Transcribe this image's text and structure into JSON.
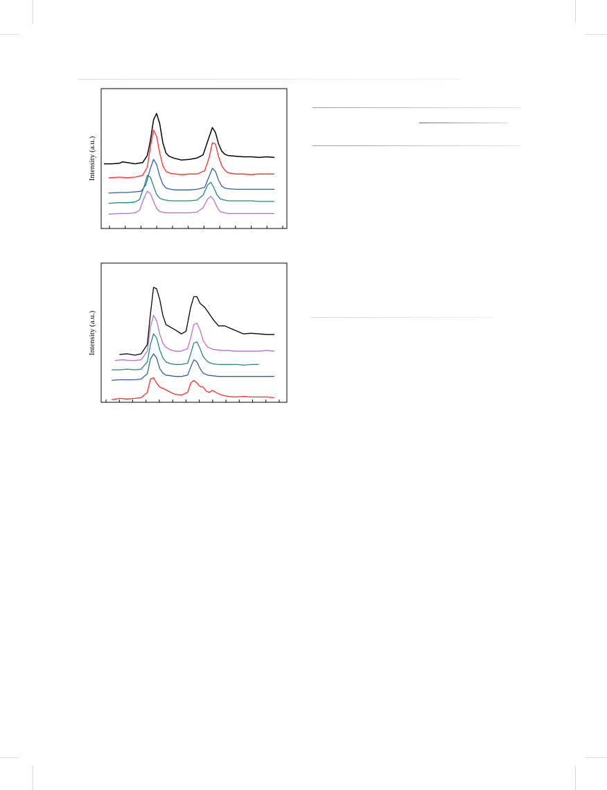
{
  "page": {
    "accent_line_color": "#f3d6d6",
    "table_rule_color": "#9a9a9a",
    "crop_mark_color": "#d9d9d9"
  },
  "chart_data": [
    {
      "type": "line",
      "ylabel": "Intensity (a.u.)",
      "xlim": [
        0,
        11
      ],
      "ylim": [
        0,
        10
      ],
      "x_tick_count": 12,
      "x_tick_labels": [],
      "series": [
        {
          "color": "#000000",
          "x": [
            0.0,
            0.5,
            1.0,
            1.2,
            1.5,
            2.0,
            2.5,
            2.8,
            3.0,
            3.2,
            3.4,
            3.6,
            3.8,
            4.0,
            4.2,
            4.5,
            5.0,
            5.5,
            6.0,
            6.4,
            6.8,
            7.0,
            7.2,
            7.4,
            7.6,
            7.8,
            8.0,
            8.5,
            9.0,
            9.5,
            10.0,
            10.5,
            11.0
          ],
          "y": [
            4.75,
            4.75,
            4.8,
            4.9,
            4.85,
            4.75,
            4.85,
            5.4,
            6.6,
            8.2,
            8.7,
            7.9,
            6.4,
            5.6,
            5.35,
            5.2,
            5.05,
            5.1,
            5.2,
            5.45,
            6.9,
            7.6,
            7.2,
            6.3,
            5.75,
            5.5,
            5.4,
            5.35,
            5.3,
            5.3,
            5.25,
            5.3,
            5.25
          ]
        },
        {
          "color": "#ff2a2a",
          "x": [
            0.3,
            1.0,
            1.5,
            2.0,
            2.5,
            2.8,
            3.0,
            3.2,
            3.4,
            3.6,
            3.8,
            4.0,
            4.3,
            4.6,
            5.0,
            5.5,
            6.0,
            6.5,
            6.8,
            7.0,
            7.2,
            7.4,
            7.6,
            7.8,
            8.0,
            8.5,
            9.0,
            9.5,
            10.0,
            10.5,
            11.0
          ],
          "y": [
            3.65,
            3.7,
            3.65,
            3.7,
            3.85,
            4.5,
            6.1,
            7.4,
            6.9,
            5.6,
            4.6,
            4.15,
            4.0,
            3.95,
            3.9,
            3.95,
            3.95,
            4.2,
            5.3,
            6.4,
            6.3,
            5.3,
            4.6,
            4.25,
            4.05,
            3.95,
            3.95,
            3.9,
            3.95,
            3.95,
            3.95
          ]
        },
        {
          "color": "#2f5ea8",
          "x": [
            0.3,
            1.0,
            1.5,
            2.0,
            2.4,
            2.7,
            3.0,
            3.2,
            3.4,
            3.6,
            3.8,
            4.0,
            4.3,
            4.6,
            5.0,
            5.5,
            6.0,
            6.5,
            6.8,
            7.0,
            7.2,
            7.4,
            7.6,
            7.8,
            8.0,
            8.5,
            9.0,
            9.5,
            10.0,
            10.5,
            11.0
          ],
          "y": [
            2.45,
            2.5,
            2.5,
            2.55,
            2.6,
            3.1,
            4.4,
            5.1,
            4.7,
            3.8,
            3.15,
            2.85,
            2.75,
            2.7,
            2.7,
            2.7,
            2.75,
            2.9,
            3.8,
            4.4,
            4.15,
            3.45,
            3.0,
            2.85,
            2.8,
            2.75,
            2.75,
            2.75,
            2.75,
            2.75,
            2.75
          ]
        },
        {
          "color": "#1f8a7a",
          "x": [
            0.3,
            1.0,
            1.5,
            2.0,
            2.3,
            2.6,
            2.8,
            3.0,
            3.2,
            3.4,
            3.6,
            3.8,
            4.0,
            4.3,
            4.6,
            5.0,
            5.5,
            6.0,
            6.4,
            6.7,
            6.9,
            7.1,
            7.3,
            7.5,
            7.8,
            8.0,
            8.5,
            9.0,
            9.5,
            10.0,
            10.5,
            11.0
          ],
          "y": [
            1.65,
            1.7,
            1.7,
            1.75,
            1.95,
            3.0,
            3.85,
            3.7,
            3.0,
            2.35,
            2.05,
            1.95,
            1.9,
            1.85,
            1.85,
            1.85,
            1.85,
            1.9,
            2.3,
            3.1,
            3.3,
            2.85,
            2.3,
            2.0,
            1.9,
            1.85,
            1.85,
            1.85,
            1.85,
            1.8,
            1.8,
            1.8
          ]
        },
        {
          "color": "#b56fcc",
          "x": [
            0.3,
            1.0,
            1.5,
            2.0,
            2.3,
            2.6,
            2.8,
            3.0,
            3.2,
            3.4,
            3.6,
            3.8,
            4.0,
            4.3,
            4.6,
            5.0,
            5.5,
            6.0,
            6.4,
            6.7,
            6.9,
            7.1,
            7.3,
            7.5,
            7.8,
            8.0,
            8.5,
            9.0,
            9.5,
            10.0,
            10.5,
            11.0
          ],
          "y": [
            0.8,
            0.85,
            0.85,
            0.9,
            1.1,
            2.1,
            2.6,
            2.4,
            1.8,
            1.25,
            1.0,
            0.95,
            0.9,
            0.9,
            0.9,
            0.9,
            0.9,
            0.95,
            1.3,
            2.0,
            2.2,
            1.9,
            1.35,
            1.0,
            0.9,
            0.85,
            0.85,
            0.85,
            0.85,
            0.85,
            0.85,
            0.85
          ]
        }
      ]
    },
    {
      "type": "line",
      "ylabel": "Intensity (a.u.)",
      "xlim": [
        0,
        11
      ],
      "ylim": [
        0,
        10
      ],
      "x_tick_count": 14,
      "x_tick_labels": [],
      "series": [
        {
          "color": "#000000",
          "x": [
            1.0,
            1.5,
            2.0,
            2.4,
            2.8,
            3.0,
            3.2,
            3.4,
            3.6,
            3.8,
            4.0,
            4.3,
            4.6,
            5.0,
            5.3,
            5.6,
            5.8,
            6.0,
            6.2,
            6.5,
            6.8,
            7.1,
            7.4,
            7.8,
            8.2,
            8.6,
            9.0,
            9.5,
            10.0,
            10.5,
            11.0
          ],
          "y": [
            3.75,
            3.8,
            3.7,
            3.8,
            4.5,
            6.8,
            8.8,
            8.7,
            7.9,
            6.7,
            6.0,
            5.8,
            5.6,
            5.3,
            5.5,
            7.3,
            8.1,
            8.1,
            7.6,
            7.3,
            6.8,
            6.3,
            5.9,
            5.9,
            5.7,
            5.5,
            5.3,
            5.35,
            5.3,
            5.25,
            5.25
          ]
        },
        {
          "color": "#b56fcc",
          "x": [
            0.7,
            1.2,
            1.7,
            2.0,
            2.4,
            2.8,
            3.0,
            3.2,
            3.4,
            3.6,
            3.8,
            4.0,
            4.3,
            4.6,
            5.0,
            5.4,
            5.6,
            5.8,
            6.0,
            6.2,
            6.4,
            6.7,
            7.0,
            7.3,
            7.6,
            8.0,
            8.5,
            9.0,
            9.5,
            10.0,
            10.5,
            11.0
          ],
          "y": [
            3.3,
            3.35,
            3.3,
            3.3,
            3.35,
            4.0,
            5.8,
            6.7,
            6.3,
            5.3,
            4.6,
            4.3,
            4.1,
            4.0,
            4.0,
            4.2,
            5.0,
            6.0,
            6.1,
            5.6,
            4.8,
            4.3,
            4.15,
            4.1,
            4.05,
            4.05,
            4.0,
            4.0,
            4.0,
            4.0,
            4.05,
            4.0
          ]
        },
        {
          "color": "#1f8a7a",
          "x": [
            0.5,
            1.0,
            1.5,
            2.0,
            2.4,
            2.8,
            3.0,
            3.2,
            3.4,
            3.6,
            3.8,
            4.0,
            4.3,
            4.6,
            5.0,
            5.4,
            5.6,
            5.8,
            6.0,
            6.2,
            6.4,
            6.7,
            7.0,
            7.4,
            7.8,
            8.2,
            8.6,
            9.0,
            9.5,
            10.0
          ],
          "y": [
            2.6,
            2.6,
            2.65,
            2.6,
            2.65,
            3.2,
            4.5,
            5.3,
            5.0,
            4.1,
            3.5,
            3.2,
            3.05,
            3.0,
            3.0,
            3.1,
            3.8,
            4.6,
            4.7,
            4.2,
            3.6,
            3.2,
            3.05,
            3.0,
            3.0,
            3.0,
            3.0,
            2.95,
            3.0,
            3.0
          ]
        },
        {
          "color": "#2f5ea8",
          "x": [
            0.5,
            1.0,
            1.5,
            2.0,
            2.4,
            2.8,
            3.0,
            3.2,
            3.4,
            3.6,
            3.8,
            4.0,
            4.3,
            4.6,
            5.0,
            5.4,
            5.6,
            5.8,
            6.0,
            6.2,
            6.4,
            6.7,
            7.0,
            7.4,
            7.8,
            8.2,
            8.6,
            9.0,
            9.5,
            10.0,
            10.5,
            11.0
          ],
          "y": [
            1.8,
            1.85,
            1.85,
            1.85,
            1.9,
            2.3,
            3.4,
            3.8,
            3.5,
            2.7,
            2.35,
            2.2,
            2.15,
            2.1,
            2.1,
            2.2,
            2.8,
            3.35,
            3.2,
            2.7,
            2.35,
            2.2,
            2.15,
            2.1,
            2.1,
            2.1,
            2.1,
            2.1,
            2.1,
            2.1,
            2.1,
            2.1
          ]
        },
        {
          "color": "#ff2a2a",
          "x": [
            0.5,
            1.0,
            1.5,
            2.0,
            2.4,
            2.8,
            3.0,
            3.2,
            3.4,
            3.6,
            3.8,
            4.0,
            4.3,
            4.6,
            5.0,
            5.4,
            5.6,
            5.8,
            6.0,
            6.2,
            6.4,
            6.6,
            6.8,
            7.0,
            7.3,
            7.6,
            8.0,
            8.5,
            9.0,
            9.5,
            10.0,
            10.5,
            11.0
          ],
          "y": [
            0.35,
            0.45,
            0.4,
            0.45,
            0.5,
            0.9,
            1.9,
            2.0,
            1.6,
            1.3,
            1.2,
            1.1,
            0.9,
            0.75,
            0.7,
            0.9,
            1.6,
            1.8,
            1.6,
            1.35,
            1.3,
            1.0,
            0.9,
            1.05,
            0.85,
            0.7,
            0.6,
            0.55,
            0.6,
            0.55,
            0.55,
            0.55,
            0.5
          ]
        }
      ]
    }
  ]
}
